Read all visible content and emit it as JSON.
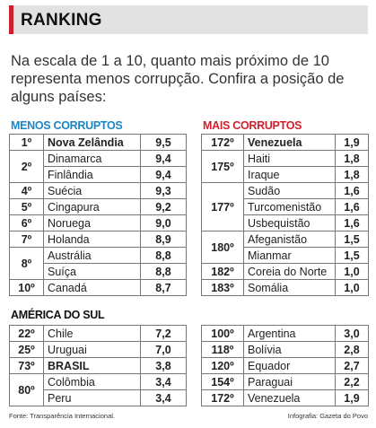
{
  "title": "RANKING",
  "subtitle": "Na escala de 1 a 10, quanto mais próximo de 10 representa menos corrupção. Confira a posição de alguns países:",
  "colors": {
    "blue": "#1a86c8",
    "red": "#d21f2e",
    "gray": "#e2e2e2"
  },
  "menos": {
    "title": "MENOS CORRUPTOS",
    "rows": [
      {
        "rank": "1º",
        "span": 1,
        "country": "Nova Zelândia",
        "value": "9,5",
        "bold": true
      },
      {
        "rank": "2º",
        "span": 2,
        "country": "Dinamarca",
        "value": "9,4"
      },
      {
        "country": "Finlândia",
        "value": "9,4"
      },
      {
        "rank": "4º",
        "span": 1,
        "country": "Suécia",
        "value": "9,3"
      },
      {
        "rank": "5º",
        "span": 1,
        "country": "Cingapura",
        "value": "9,2"
      },
      {
        "rank": "6º",
        "span": 1,
        "country": "Noruega",
        "value": "9,0"
      },
      {
        "rank": "7º",
        "span": 1,
        "country": "Holanda",
        "value": "8,9"
      },
      {
        "rank": "8º",
        "span": 2,
        "country": "Austrália",
        "value": "8,8"
      },
      {
        "country": "Suíça",
        "value": "8,8"
      },
      {
        "rank": "10º",
        "span": 1,
        "country": "Canadá",
        "value": "8,7"
      }
    ]
  },
  "mais": {
    "title": "MAIS CORRUPTOS",
    "rows": [
      {
        "rank": "172º",
        "span": 1,
        "country": "Venezuela",
        "value": "1,9",
        "bold": true
      },
      {
        "rank": "175º",
        "span": 2,
        "country": "Haiti",
        "value": "1,8"
      },
      {
        "country": "Iraque",
        "value": "1,8"
      },
      {
        "rank": "177º",
        "span": 3,
        "country": "Sudão",
        "value": "1,6"
      },
      {
        "country": "Turcomenistão",
        "value": "1,6"
      },
      {
        "country": "Usbequistão",
        "value": "1,6"
      },
      {
        "rank": "180º",
        "span": 2,
        "country": "Afeganistão",
        "value": "1,5"
      },
      {
        "country": "Mianmar",
        "value": "1,5"
      },
      {
        "rank": "182º",
        "span": 1,
        "country": "Coreia do Norte",
        "value": "1,0"
      },
      {
        "rank": "183º",
        "span": 1,
        "country": "Somália",
        "value": "1,0"
      }
    ]
  },
  "america": {
    "title": "AMÉRICA DO SUL",
    "left_rows": [
      {
        "rank": "22º",
        "span": 1,
        "country": "Chile",
        "value": "7,2"
      },
      {
        "rank": "25º",
        "span": 1,
        "country": "Uruguai",
        "value": "7,0"
      },
      {
        "rank": "73º",
        "span": 1,
        "country": "BRASIL",
        "value": "3,8",
        "bold": true
      },
      {
        "rank": "80º",
        "span": 2,
        "country": "Colômbia",
        "value": "3,4"
      },
      {
        "country": "Peru",
        "value": "3,4"
      }
    ],
    "right_rows": [
      {
        "rank": "100º",
        "span": 1,
        "country": "Argentina",
        "value": "3,0"
      },
      {
        "rank": "118º",
        "span": 1,
        "country": "Bolívia",
        "value": "2,8"
      },
      {
        "rank": "120º",
        "span": 1,
        "country": "Equador",
        "value": "2,7"
      },
      {
        "rank": "154º",
        "span": 1,
        "country": "Paraguai",
        "value": "2,2"
      },
      {
        "rank": "172º",
        "span": 1,
        "country": "Venezuela",
        "value": "1,9"
      }
    ]
  },
  "footer": {
    "source": "Fonte: Transparência Internacional.",
    "credit": "Infografia: Gazeta do Povo"
  }
}
